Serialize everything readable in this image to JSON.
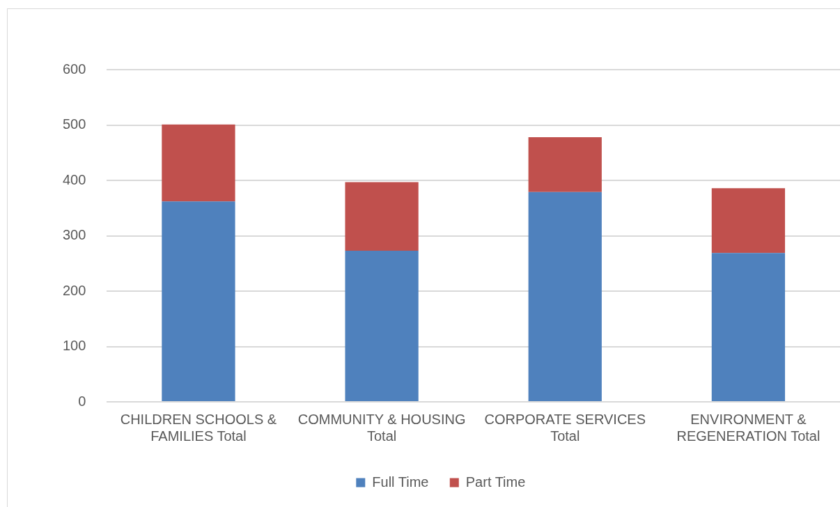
{
  "chart_data": {
    "type": "bar",
    "stacked": true,
    "categories": [
      "CHILDREN SCHOOLS & FAMILIES Total",
      "COMMUNITY & HOUSING Total",
      "CORPORATE SERVICES Total",
      "ENVIRONMENT & REGENERATION Total"
    ],
    "series": [
      {
        "name": "Full Time",
        "color": "#4f81bd",
        "values": [
          362,
          273,
          379,
          269
        ]
      },
      {
        "name": "Part Time",
        "color": "#c0504d",
        "values": [
          139,
          124,
          99,
          117
        ]
      }
    ],
    "ylim": [
      0,
      600
    ],
    "yticks": [
      0,
      100,
      200,
      300,
      400,
      500,
      600
    ],
    "grid": "y",
    "legend": "bottom"
  }
}
